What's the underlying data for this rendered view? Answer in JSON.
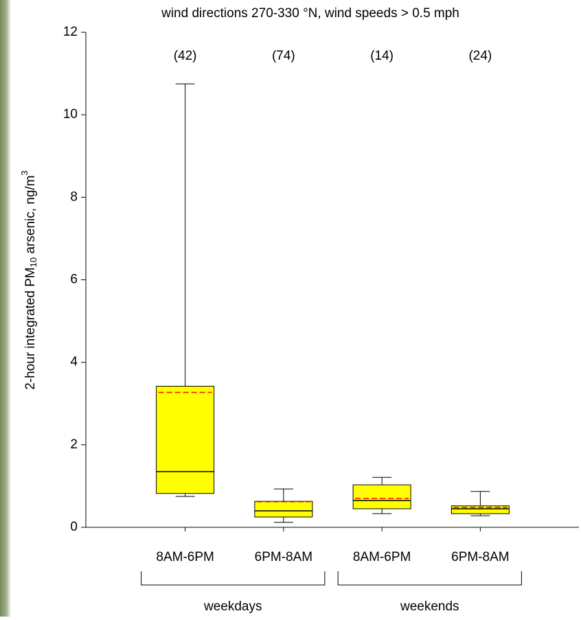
{
  "chart_data": {
    "type": "box",
    "title": "wind directions 270-330 °N, wind speeds > 0.5 mph",
    "ylabel": {
      "text": "2-hour integrated PM",
      "sub": "10",
      "rest": " arsenic, ng/m",
      "sup": "3"
    },
    "categories": [
      "8AM-6PM",
      "6PM-8AM",
      "8AM-6PM",
      "6PM-8AM"
    ],
    "counts": [
      "(42)",
      "(74)",
      "(14)",
      "(24)"
    ],
    "groups": [
      {
        "label": "weekdays",
        "span": [
          0,
          1
        ]
      },
      {
        "label": "weekends",
        "span": [
          2,
          3
        ]
      }
    ],
    "min": [
      0.75,
      0.12,
      0.33,
      0.28
    ],
    "q1": [
      0.82,
      0.25,
      0.45,
      0.33
    ],
    "median": [
      1.35,
      0.4,
      0.65,
      0.45
    ],
    "q3": [
      3.42,
      0.63,
      1.03,
      0.52
    ],
    "max": [
      10.75,
      0.93,
      1.21,
      0.87
    ],
    "mean": [
      3.27,
      0.62,
      0.7,
      0.48
    ],
    "color": "#ffff00",
    "mean_color": "#ff0000",
    "ylim": [
      0,
      12
    ],
    "yticks": [
      0,
      2,
      4,
      6,
      8,
      10,
      12
    ]
  }
}
